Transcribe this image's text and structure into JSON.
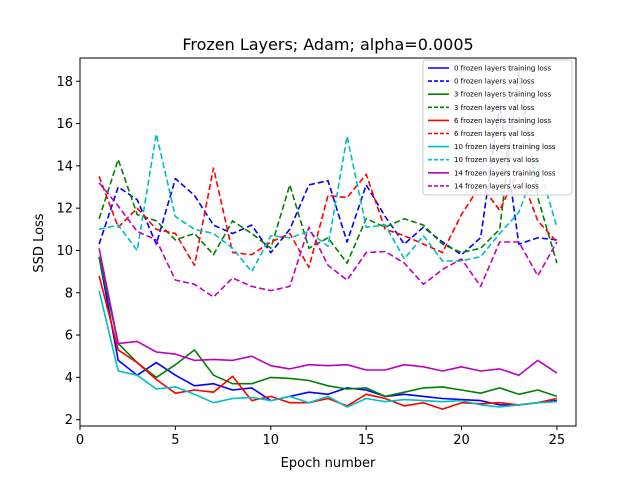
{
  "chart_data": {
    "type": "line",
    "title": "Frozen Layers; Adam; alpha=0.0005",
    "xlabel": "Epoch number",
    "ylabel": "SSD Loss",
    "xlim": [
      0,
      26
    ],
    "ylim": [
      1.7,
      19.1
    ],
    "xticks": [
      0,
      5,
      10,
      15,
      20,
      25
    ],
    "yticks": [
      2,
      4,
      6,
      8,
      10,
      12,
      14,
      16,
      18
    ],
    "legend_position": "upper right",
    "x": [
      1,
      2,
      3,
      4,
      5,
      6,
      7,
      8,
      9,
      10,
      11,
      12,
      13,
      14,
      15,
      16,
      17,
      18,
      19,
      20,
      21,
      22,
      23,
      24,
      25
    ],
    "series": [
      {
        "name": "0 frozen layers training loss",
        "color": "#0000ff",
        "style": "solid",
        "values": [
          9.7,
          4.8,
          4.1,
          4.7,
          4.1,
          3.6,
          3.7,
          3.4,
          3.5,
          2.9,
          3.1,
          3.3,
          3.2,
          3.5,
          3.4,
          3.1,
          3.2,
          3.1,
          3.0,
          2.95,
          2.9,
          2.7,
          2.7,
          2.8,
          2.9
        ]
      },
      {
        "name": "0 frozen layers val loss",
        "color": "#0000ff",
        "style": "dashed",
        "values": [
          10.3,
          13.0,
          12.4,
          10.3,
          13.4,
          12.6,
          11.2,
          10.8,
          11.2,
          9.9,
          11.0,
          13.1,
          13.3,
          10.4,
          13.1,
          11.6,
          10.3,
          11.1,
          10.4,
          9.8,
          10.6,
          16.9,
          10.3,
          10.6,
          10.5
        ]
      },
      {
        "name": "3 frozen layers training loss",
        "color": "#008000",
        "style": "solid",
        "values": [
          9.7,
          5.6,
          4.7,
          4.0,
          4.6,
          5.3,
          4.1,
          3.7,
          3.7,
          4.0,
          3.95,
          3.85,
          3.6,
          3.45,
          3.5,
          3.1,
          3.3,
          3.5,
          3.55,
          3.4,
          3.25,
          3.5,
          3.2,
          3.4,
          3.1
        ]
      },
      {
        "name": "3 frozen layers val loss",
        "color": "#008000",
        "style": "dashed",
        "values": [
          11.5,
          14.3,
          11.7,
          11.4,
          10.5,
          10.8,
          9.8,
          11.4,
          10.8,
          10.1,
          13.1,
          10.1,
          10.6,
          9.4,
          11.5,
          11.1,
          11.5,
          11.2,
          10.3,
          9.9,
          10.1,
          11.0,
          18.5,
          12.5,
          9.4
        ]
      },
      {
        "name": "6 frozen layers training loss",
        "color": "#ff0000",
        "style": "solid",
        "values": [
          8.8,
          5.3,
          4.7,
          3.9,
          3.25,
          3.4,
          3.3,
          4.05,
          2.9,
          3.1,
          2.8,
          2.8,
          3.0,
          2.65,
          3.2,
          3.0,
          2.65,
          2.8,
          2.5,
          2.8,
          2.75,
          2.8,
          2.7,
          2.8,
          3.0
        ]
      },
      {
        "name": "6 frozen layers val loss",
        "color": "#ff0000",
        "style": "dashed",
        "values": [
          13.5,
          11.1,
          12.0,
          11.0,
          10.8,
          9.3,
          13.9,
          9.9,
          9.8,
          10.4,
          10.8,
          9.2,
          12.6,
          12.5,
          13.6,
          11.0,
          10.7,
          10.3,
          9.9,
          11.7,
          13.1,
          11.9,
          13.8,
          11.4,
          10.4
        ]
      },
      {
        "name": "10 frozen layers training loss",
        "color": "#00bfbf",
        "style": "solid",
        "values": [
          8.1,
          4.3,
          4.1,
          3.45,
          3.55,
          3.2,
          2.8,
          3.0,
          3.05,
          2.9,
          3.1,
          2.8,
          3.1,
          2.6,
          3.0,
          2.85,
          2.95,
          2.9,
          2.85,
          2.9,
          2.7,
          2.6,
          2.7,
          2.8,
          2.85
        ]
      },
      {
        "name": "10 frozen layers val loss",
        "color": "#00bfbf",
        "style": "dashed",
        "values": [
          11.0,
          11.2,
          10.0,
          15.5,
          11.6,
          11.0,
          10.8,
          10.1,
          9.0,
          10.7,
          10.6,
          10.9,
          10.2,
          15.4,
          11.1,
          11.2,
          9.6,
          10.7,
          9.5,
          9.5,
          9.7,
          10.8,
          11.8,
          14.2,
          11.1
        ]
      },
      {
        "name": "14 frozen layers training loss",
        "color": "#bf00bf",
        "style": "solid",
        "values": [
          10.1,
          5.6,
          5.7,
          5.2,
          5.1,
          4.8,
          4.85,
          4.8,
          5.0,
          4.55,
          4.4,
          4.6,
          4.55,
          4.6,
          4.35,
          4.35,
          4.6,
          4.5,
          4.3,
          4.5,
          4.3,
          4.4,
          4.1,
          4.8,
          4.2
        ]
      },
      {
        "name": "14 frozen layers val loss",
        "color": "#bf00bf",
        "style": "dashed",
        "values": [
          13.2,
          12.1,
          10.9,
          10.5,
          8.6,
          8.4,
          7.8,
          8.7,
          8.3,
          8.1,
          8.3,
          11.1,
          9.3,
          8.6,
          9.9,
          9.95,
          9.4,
          8.4,
          9.1,
          9.6,
          8.3,
          10.4,
          10.4,
          8.8,
          10.4
        ]
      }
    ]
  }
}
